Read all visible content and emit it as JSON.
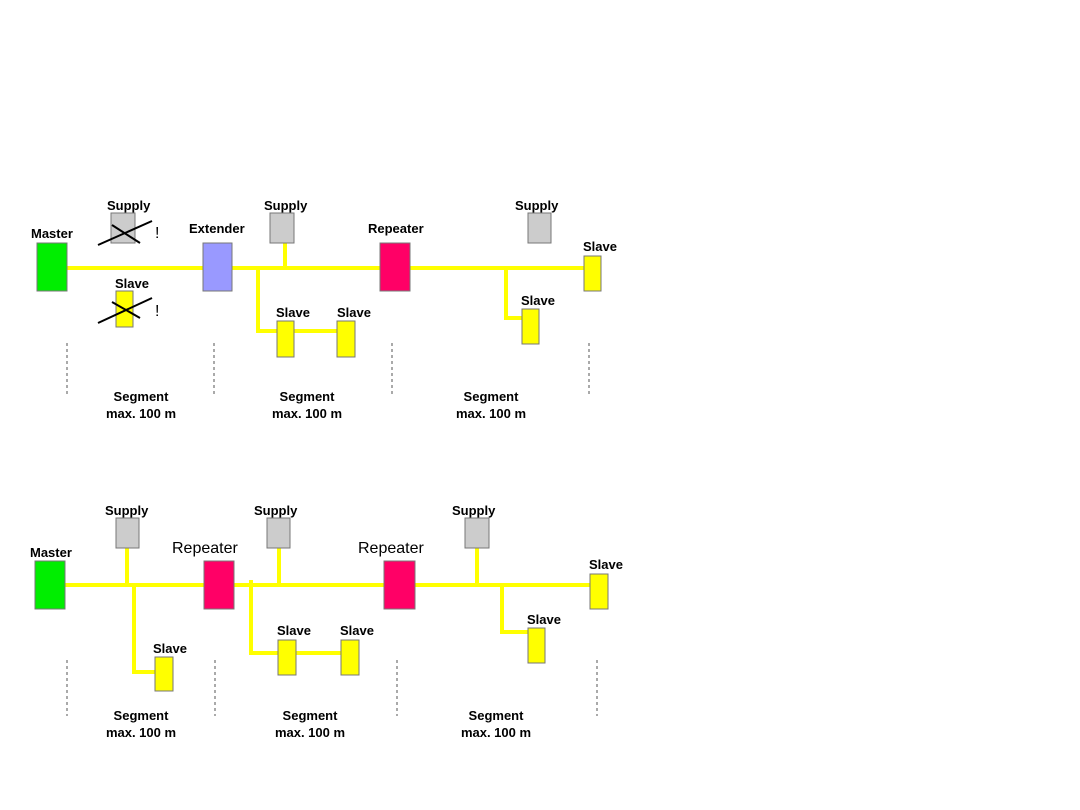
{
  "colors": {
    "bus": "#ffff00",
    "master": "#00ee00",
    "extender": "#9999ff",
    "repeater": "#ff0066",
    "supply": "#cccccc",
    "slave": "#ffff00"
  },
  "top": {
    "master": "Master",
    "supply_crossed": "Supply",
    "slave_crossed": "Slave",
    "warning": "!",
    "extender": "Extender",
    "supply1": "Supply",
    "slave1": "Slave",
    "slave2": "Slave",
    "repeater": "Repeater",
    "supply2": "Supply",
    "slave3": "Slave",
    "slave4": "Slave",
    "segments": [
      {
        "line1": "Segment",
        "line2": "max. 100 m"
      },
      {
        "line1": "Segment",
        "line2": "max. 100 m"
      },
      {
        "line1": "Segment",
        "line2": "max. 100 m"
      }
    ]
  },
  "bottom": {
    "master": "Master",
    "supply1": "Supply",
    "slave1": "Slave",
    "repeater1": "Repeater",
    "supply2": "Supply",
    "slave2": "Slave",
    "slave3": "Slave",
    "repeater2": "Repeater",
    "supply3": "Supply",
    "slave4": "Slave",
    "slave5": "Slave",
    "segments": [
      {
        "line1": "Segment",
        "line2": "max. 100 m"
      },
      {
        "line1": "Segment",
        "line2": "max. 100 m"
      },
      {
        "line1": "Segment",
        "line2": "max. 100 m"
      }
    ]
  }
}
